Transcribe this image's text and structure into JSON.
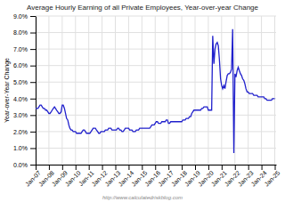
{
  "chart_data": {
    "type": "line",
    "title": "Average Hourly Earning of all Private Employees, Year-over-year Change",
    "ylabel": "Year-over-Year Change",
    "annotations": [
      "http://www.calculatedriskblog.com"
    ],
    "color": "#2020cc",
    "grid": true,
    "xlim": [
      2007.0,
      2025.1
    ],
    "xticks": [
      {
        "value": 2007,
        "label": "Jan-07"
      },
      {
        "value": 2008,
        "label": "Jan-08"
      },
      {
        "value": 2009,
        "label": "Jan-09"
      },
      {
        "value": 2010,
        "label": "Jan-10"
      },
      {
        "value": 2011,
        "label": "Jan-11"
      },
      {
        "value": 2012,
        "label": "Jan-12"
      },
      {
        "value": 2013,
        "label": "Jan-13"
      },
      {
        "value": 2014,
        "label": "Jan-14"
      },
      {
        "value": 2015,
        "label": "Jan-15"
      },
      {
        "value": 2016,
        "label": "Jan-16"
      },
      {
        "value": 2017,
        "label": "Jan-17"
      },
      {
        "value": 2018,
        "label": "Jan-18"
      },
      {
        "value": 2019,
        "label": "Jan-19"
      },
      {
        "value": 2020,
        "label": "Jan-20"
      },
      {
        "value": 2021,
        "label": "Jan-21"
      },
      {
        "value": 2022,
        "label": "Jan-22"
      },
      {
        "value": 2023,
        "label": "Jan-23"
      },
      {
        "value": 2024,
        "label": "Jan-24"
      },
      {
        "value": 2025,
        "label": "Jan-25"
      }
    ],
    "ylim": [
      0.0,
      0.09
    ],
    "yticks": [
      {
        "value": 0.0,
        "label": "0.0%"
      },
      {
        "value": 0.01,
        "label": "1.0%"
      },
      {
        "value": 0.02,
        "label": "2.0%"
      },
      {
        "value": 0.03,
        "label": "3.0%"
      },
      {
        "value": 0.04,
        "label": "4.0%"
      },
      {
        "value": 0.05,
        "label": "5.0%"
      },
      {
        "value": 0.06,
        "label": "6.0%"
      },
      {
        "value": 0.07,
        "label": "7.0%"
      },
      {
        "value": 0.08,
        "label": "8.0%"
      },
      {
        "value": 0.09,
        "label": "9.0%"
      }
    ],
    "x": [
      2007.0,
      2007.08,
      2007.17,
      2007.25,
      2007.33,
      2007.42,
      2007.5,
      2007.58,
      2007.67,
      2007.75,
      2007.83,
      2007.92,
      2008.0,
      2008.08,
      2008.17,
      2008.25,
      2008.33,
      2008.42,
      2008.5,
      2008.58,
      2008.67,
      2008.75,
      2008.83,
      2008.92,
      2009.0,
      2009.08,
      2009.17,
      2009.25,
      2009.33,
      2009.42,
      2009.5,
      2009.58,
      2009.67,
      2009.75,
      2009.83,
      2009.92,
      2010.0,
      2010.08,
      2010.17,
      2010.25,
      2010.33,
      2010.42,
      2010.5,
      2010.58,
      2010.67,
      2010.75,
      2010.83,
      2010.92,
      2011.0,
      2011.08,
      2011.17,
      2011.25,
      2011.33,
      2011.42,
      2011.5,
      2011.58,
      2011.67,
      2011.75,
      2011.83,
      2011.92,
      2012.0,
      2012.08,
      2012.17,
      2012.25,
      2012.33,
      2012.42,
      2012.5,
      2012.58,
      2012.67,
      2012.75,
      2012.83,
      2012.92,
      2013.0,
      2013.08,
      2013.17,
      2013.25,
      2013.33,
      2013.42,
      2013.5,
      2013.58,
      2013.67,
      2013.75,
      2013.83,
      2013.92,
      2014.0,
      2014.08,
      2014.17,
      2014.25,
      2014.33,
      2014.42,
      2014.5,
      2014.58,
      2014.67,
      2014.75,
      2014.83,
      2014.92,
      2015.0,
      2015.08,
      2015.17,
      2015.25,
      2015.33,
      2015.42,
      2015.5,
      2015.58,
      2015.67,
      2015.75,
      2015.83,
      2015.92,
      2016.0,
      2016.08,
      2016.17,
      2016.25,
      2016.33,
      2016.42,
      2016.5,
      2016.58,
      2016.67,
      2016.75,
      2016.83,
      2016.92,
      2017.0,
      2017.08,
      2017.17,
      2017.25,
      2017.33,
      2017.42,
      2017.5,
      2017.58,
      2017.67,
      2017.75,
      2017.83,
      2017.92,
      2018.0,
      2018.08,
      2018.17,
      2018.25,
      2018.33,
      2018.42,
      2018.5,
      2018.58,
      2018.67,
      2018.75,
      2018.83,
      2018.92,
      2019.0,
      2019.08,
      2019.17,
      2019.25,
      2019.33,
      2019.42,
      2019.5,
      2019.58,
      2019.67,
      2019.75,
      2019.83,
      2019.92,
      2020.0,
      2020.08,
      2020.17,
      2020.25,
      2020.33,
      2020.42,
      2020.5,
      2020.58,
      2020.67,
      2020.75,
      2020.83,
      2020.92,
      2021.0,
      2021.08,
      2021.17,
      2021.25,
      2021.33,
      2021.42,
      2021.5,
      2021.58,
      2021.67,
      2021.75,
      2021.83,
      2021.92,
      2022.0,
      2022.08,
      2022.17,
      2022.25,
      2022.33,
      2022.42,
      2022.5,
      2022.58,
      2022.67,
      2022.75,
      2022.83,
      2022.92,
      2023.0,
      2023.08,
      2023.17,
      2023.25,
      2023.33,
      2023.42,
      2023.5,
      2023.58,
      2023.67,
      2023.75,
      2023.83,
      2023.92,
      2024.0,
      2024.08,
      2024.17,
      2024.25,
      2024.33,
      2024.42,
      2024.5,
      2024.58,
      2024.67,
      2024.75,
      2024.83,
      2024.92,
      2025.0
    ],
    "values": [
      0.034,
      0.034,
      0.034,
      0.035,
      0.036,
      0.036,
      0.035,
      0.034,
      0.034,
      0.033,
      0.033,
      0.032,
      0.031,
      0.031,
      0.032,
      0.033,
      0.034,
      0.035,
      0.034,
      0.033,
      0.032,
      0.031,
      0.031,
      0.032,
      0.036,
      0.036,
      0.034,
      0.031,
      0.028,
      0.027,
      0.024,
      0.022,
      0.021,
      0.021,
      0.02,
      0.02,
      0.02,
      0.019,
      0.019,
      0.019,
      0.019,
      0.019,
      0.02,
      0.021,
      0.021,
      0.02,
      0.019,
      0.019,
      0.019,
      0.019,
      0.02,
      0.021,
      0.022,
      0.022,
      0.022,
      0.021,
      0.02,
      0.019,
      0.019,
      0.02,
      0.02,
      0.02,
      0.02,
      0.021,
      0.021,
      0.021,
      0.022,
      0.022,
      0.022,
      0.021,
      0.021,
      0.021,
      0.021,
      0.021,
      0.022,
      0.022,
      0.021,
      0.021,
      0.02,
      0.02,
      0.021,
      0.022,
      0.022,
      0.022,
      0.022,
      0.021,
      0.021,
      0.021,
      0.02,
      0.02,
      0.02,
      0.021,
      0.021,
      0.021,
      0.022,
      0.022,
      0.022,
      0.022,
      0.022,
      0.022,
      0.022,
      0.022,
      0.022,
      0.022,
      0.023,
      0.024,
      0.024,
      0.024,
      0.025,
      0.026,
      0.026,
      0.025,
      0.025,
      0.025,
      0.026,
      0.026,
      0.026,
      0.026,
      0.027,
      0.027,
      0.025,
      0.025,
      0.026,
      0.026,
      0.026,
      0.026,
      0.026,
      0.026,
      0.026,
      0.026,
      0.026,
      0.026,
      0.026,
      0.027,
      0.027,
      0.027,
      0.028,
      0.028,
      0.028,
      0.029,
      0.029,
      0.031,
      0.032,
      0.033,
      0.033,
      0.033,
      0.033,
      0.033,
      0.033,
      0.033,
      0.034,
      0.034,
      0.035,
      0.035,
      0.035,
      0.035,
      0.033,
      0.033,
      0.033,
      0.033,
      0.078,
      0.061,
      0.07,
      0.073,
      0.074,
      0.072,
      0.064,
      0.052,
      0.048,
      0.046,
      0.048,
      0.046,
      0.05,
      0.054,
      0.055,
      0.055,
      0.056,
      0.058,
      0.082,
      0.007,
      0.055,
      0.053,
      0.057,
      0.059,
      0.057,
      0.055,
      0.054,
      0.052,
      0.051,
      0.049,
      0.046,
      0.044,
      0.044,
      0.043,
      0.043,
      0.043,
      0.043,
      0.042,
      0.042,
      0.042,
      0.042,
      0.041,
      0.041,
      0.041,
      0.041,
      0.041,
      0.041,
      0.04,
      0.04,
      0.039,
      0.039,
      0.039,
      0.039,
      0.039,
      0.04,
      0.04,
      0.04
    ]
  }
}
